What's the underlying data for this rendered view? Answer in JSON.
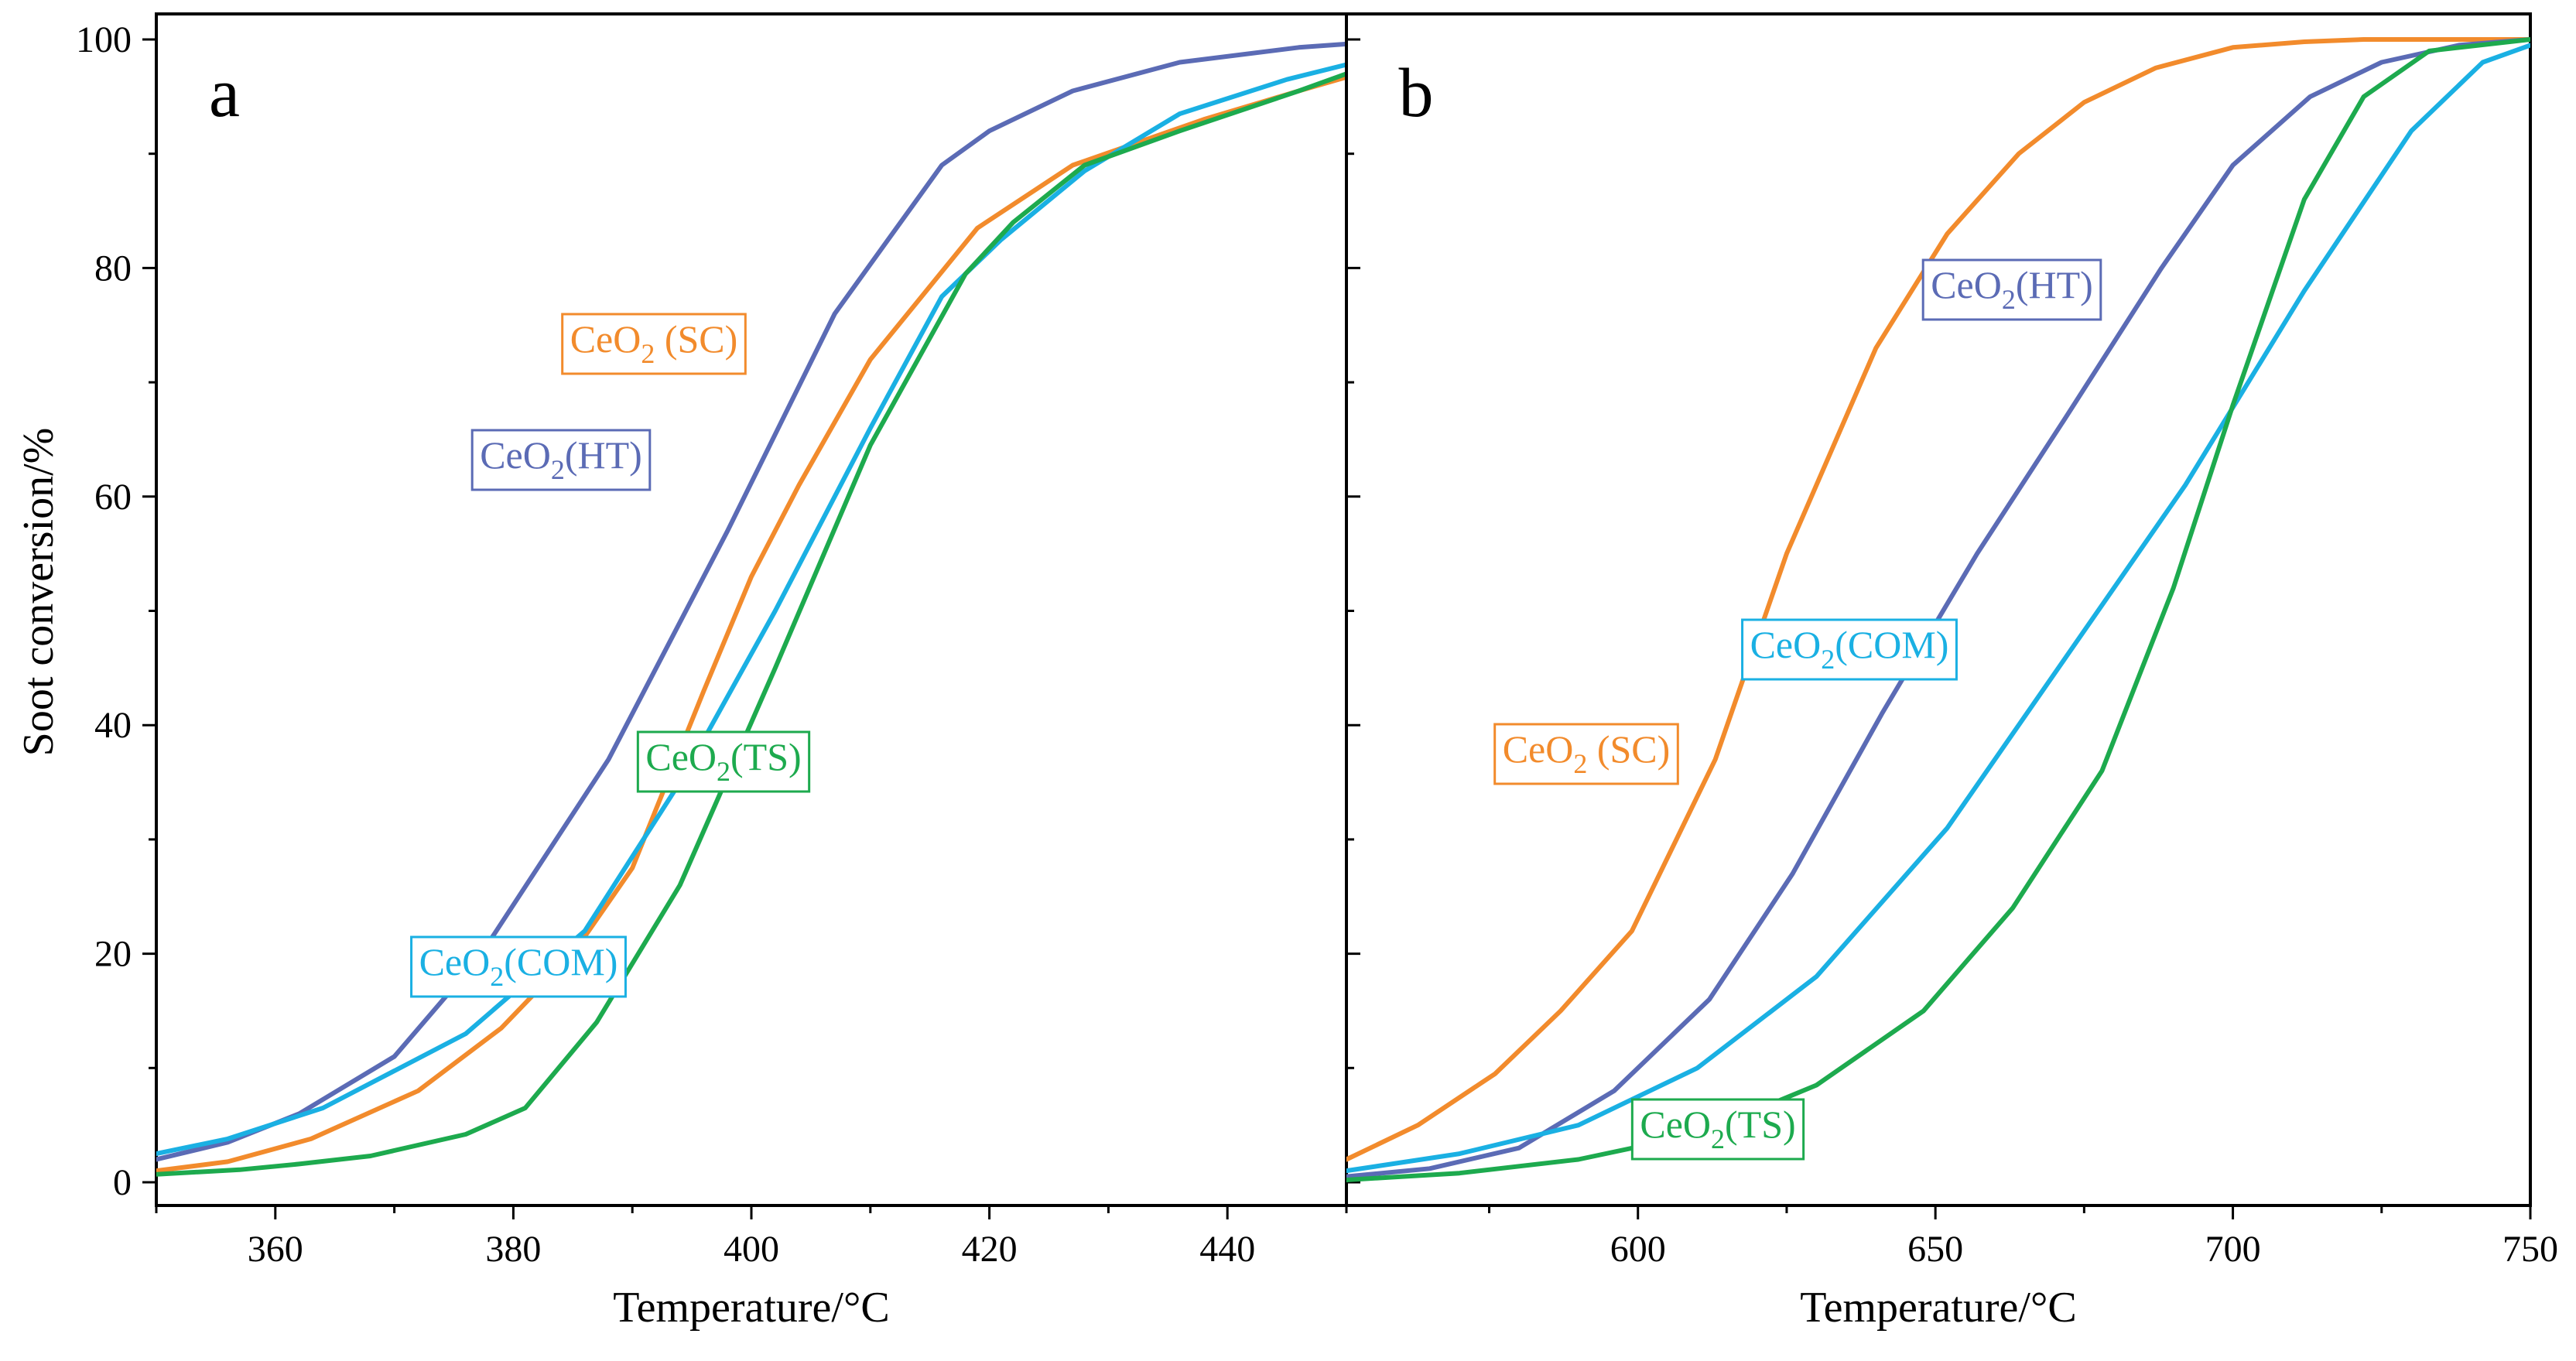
{
  "chart_data": [
    {
      "type": "line",
      "panel": "a",
      "xlabel": "Temperature/°C",
      "ylabel": "Soot conversion/%",
      "xlim": [
        350,
        450
      ],
      "ylim": [
        -2,
        101
      ],
      "xticks": [
        360,
        380,
        400,
        420,
        440
      ],
      "yticks": [
        0,
        20,
        40,
        60,
        80,
        100
      ],
      "series": [
        {
          "name": "CeO2(HT)",
          "color": "#5b6bb5",
          "x": [
            350,
            356,
            362,
            370,
            377,
            388,
            398,
            407,
            416,
            420,
            427,
            436,
            446,
            450
          ],
          "y": [
            2.0,
            3.5,
            6.0,
            11.0,
            19.5,
            37.0,
            57.0,
            76.0,
            89.0,
            92.0,
            95.5,
            98.0,
            99.3,
            99.6
          ]
        },
        {
          "name": "CeO2 (SC)",
          "color": "#f28b2c",
          "x": [
            350,
            356,
            363,
            372,
            379,
            385,
            390,
            396,
            400,
            404,
            410,
            419,
            427,
            438,
            446,
            450
          ],
          "y": [
            1.0,
            1.8,
            3.8,
            8.0,
            13.5,
            20.0,
            27.5,
            43.0,
            53.0,
            61.0,
            72.0,
            83.5,
            89.0,
            93.0,
            95.5,
            96.7
          ]
        },
        {
          "name": "CeO2(COM)",
          "color": "#1ab0e3",
          "x": [
            350,
            356,
            364,
            376,
            386,
            394,
            402,
            410,
            416,
            421,
            428,
            436,
            445,
            450
          ],
          "y": [
            2.5,
            3.8,
            6.5,
            13.0,
            22.0,
            35.0,
            50.0,
            66.0,
            77.5,
            82.5,
            88.5,
            93.5,
            96.5,
            97.8
          ]
        },
        {
          "name": "CeO2(TS)",
          "color": "#1daa4e",
          "x": [
            350,
            357,
            362,
            368,
            376,
            381,
            387,
            394,
            402,
            410,
            418,
            422,
            428,
            436,
            446,
            450
          ],
          "y": [
            0.7,
            1.1,
            1.6,
            2.3,
            4.2,
            6.5,
            14.0,
            26.0,
            45.0,
            64.5,
            79.5,
            84.0,
            89.0,
            92.0,
            95.5,
            97.0
          ]
        }
      ],
      "labels": [
        {
          "text": "CeO",
          "sub": "2",
          "suffix": " (SC)",
          "color": "#f28b2c",
          "border": "#f28b2c"
        },
        {
          "text": "CeO",
          "sub": "2",
          "suffix": "(HT)",
          "color": "#5b6bb5",
          "border": "#5b6bb5"
        },
        {
          "text": "CeO",
          "sub": "2",
          "suffix": "(TS)",
          "color": "#1daa4e",
          "border": "#1daa4e"
        },
        {
          "text": "CeO",
          "sub": "2",
          "suffix": "(COM)",
          "color": "#1ab0e3",
          "border": "#1ab0e3"
        }
      ]
    },
    {
      "type": "line",
      "panel": "b",
      "xlabel": "Temperature/°C",
      "ylabel": "Soot conversion/%",
      "xlim": [
        551,
        750
      ],
      "ylim": [
        -2,
        101
      ],
      "xticks": [
        600,
        650,
        700,
        750
      ],
      "yticks": [
        0,
        20,
        40,
        60,
        80,
        100
      ],
      "series": [
        {
          "name": "CeO2 (SC)",
          "color": "#f28b2c",
          "x": [
            551,
            563,
            576,
            587,
            599,
            613,
            625,
            640,
            652,
            664,
            675,
            687,
            700,
            712,
            722,
            735,
            750
          ],
          "y": [
            2.0,
            5.0,
            9.5,
            15.0,
            22.0,
            37.0,
            55.0,
            73.0,
            83.0,
            90.0,
            94.5,
            97.5,
            99.3,
            99.8,
            100,
            100,
            100
          ]
        },
        {
          "name": "CeO2(HT)",
          "color": "#5b6bb5",
          "x": [
            551,
            565,
            580,
            596,
            612,
            626,
            641,
            657,
            672,
            688,
            700,
            713,
            725,
            738,
            750
          ],
          "y": [
            0.5,
            1.2,
            3.0,
            8.0,
            16.0,
            27.0,
            41.0,
            55.0,
            67.0,
            80.0,
            89.0,
            95.0,
            98.0,
            99.5,
            100
          ]
        },
        {
          "name": "CeO2(COM)",
          "color": "#1ab0e3",
          "x": [
            551,
            570,
            590,
            610,
            630,
            652,
            672,
            692,
            712,
            730,
            742,
            750
          ],
          "y": [
            1.0,
            2.5,
            5.0,
            10.0,
            18.0,
            31.0,
            46.0,
            61.0,
            78.0,
            92.0,
            98.0,
            99.5
          ]
        },
        {
          "name": "CeO2(TS)",
          "color": "#1daa4e",
          "x": [
            551,
            570,
            590,
            610,
            630,
            648,
            663,
            678,
            690,
            700,
            712,
            722,
            733,
            750
          ],
          "y": [
            0.2,
            0.8,
            2.0,
            4.2,
            8.5,
            15.0,
            24.0,
            36.0,
            52.0,
            68.0,
            86.0,
            95.0,
            99.0,
            100
          ]
        }
      ],
      "labels": [
        {
          "text": "CeO",
          "sub": "2",
          "suffix": "(HT)",
          "color": "#5b6bb5",
          "border": "#5b6bb5"
        },
        {
          "text": "CeO",
          "sub": "2",
          "suffix": "(COM)",
          "color": "#1ab0e3",
          "border": "#1ab0e3"
        },
        {
          "text": "CeO",
          "sub": "2",
          "suffix": " (SC)",
          "color": "#f28b2c",
          "border": "#f28b2c"
        },
        {
          "text": "CeO",
          "sub": "2",
          "suffix": "(TS)",
          "color": "#1daa4e",
          "border": "#1daa4e"
        }
      ]
    }
  ]
}
